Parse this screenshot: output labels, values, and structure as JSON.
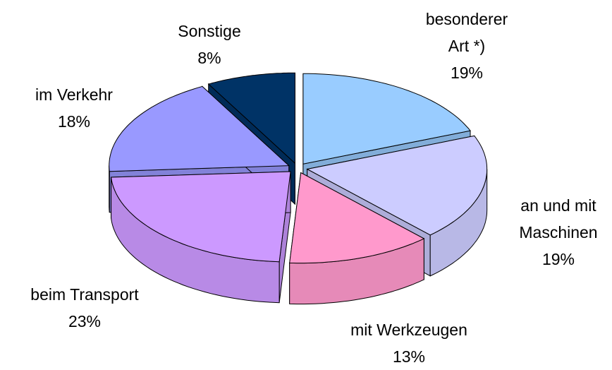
{
  "chart_data": {
    "type": "pie",
    "categories": [
      "besonderer Art *)",
      "an und mit Maschinen",
      "mit Werkzeugen",
      "beim Transport",
      "im Verkehr",
      "Sonstige"
    ],
    "values": [
      19,
      19,
      13,
      23,
      18,
      8
    ],
    "value_labels": [
      "19%",
      "19%",
      "13%",
      "23%",
      "18%",
      "8%"
    ],
    "colors": [
      "#99ccff",
      "#ccccff",
      "#ff99cc",
      "#cc99ff",
      "#9999ff",
      "#003366"
    ]
  }
}
